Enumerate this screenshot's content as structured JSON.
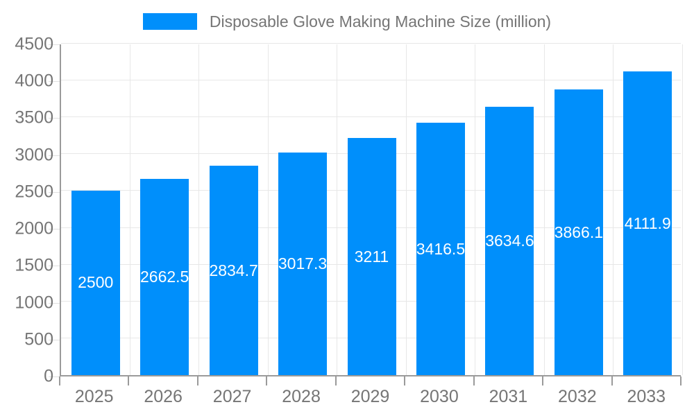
{
  "legend": {
    "series_label": "Disposable Glove Making Machine Size (million)"
  },
  "chart_data": {
    "type": "bar",
    "title": "Disposable Glove Making Machine Size (million)",
    "categories": [
      "2025",
      "2026",
      "2027",
      "2028",
      "2029",
      "2030",
      "2031",
      "2032",
      "2033"
    ],
    "values": [
      2500,
      2662.5,
      2834.7,
      3017.3,
      3211,
      3416.5,
      3634.6,
      3866.1,
      4111.9
    ],
    "value_labels": [
      "2500",
      "2662.5",
      "2834.7",
      "3017.3",
      "3211",
      "3416.5",
      "3634.6",
      "3866.1",
      "4111.9"
    ],
    "y_ticks": [
      0,
      500,
      1000,
      1500,
      2000,
      2500,
      3000,
      3500,
      4000,
      4500
    ],
    "ylim": [
      0,
      4500
    ],
    "xlabel": "",
    "ylabel": "",
    "grid": true,
    "legend_position": "top",
    "colors": {
      "bar": "#008FFB",
      "axis_text": "#757575",
      "grid_line": "#e7e7e7",
      "axis_line": "#9a9a9a",
      "value_label": "#ffffff"
    }
  }
}
